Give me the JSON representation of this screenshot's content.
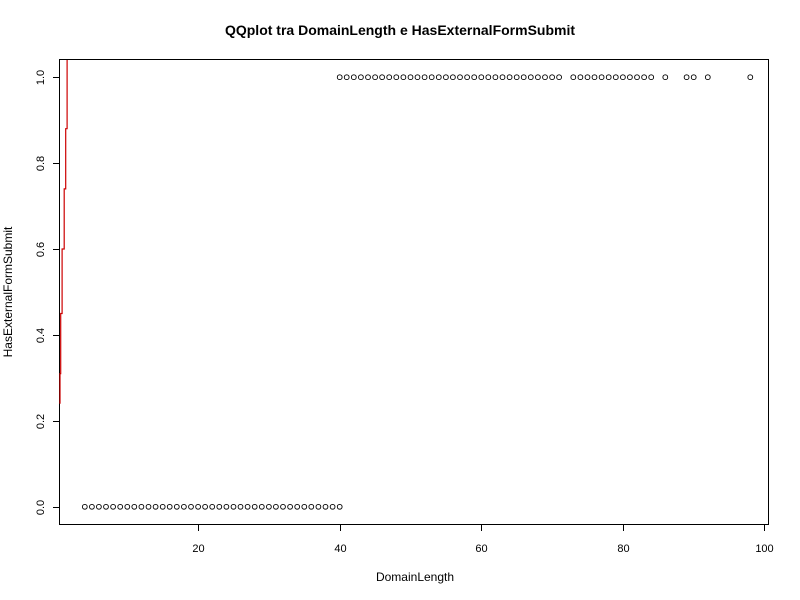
{
  "chart_data": {
    "type": "scatter",
    "title": "QQplot tra DomainLength e HasExternalFormSubmit",
    "xlabel": "DomainLength",
    "ylabel": "HasExternalFormSubmit",
    "xlim": [
      0.5,
      100.5
    ],
    "ylim": [
      -0.04,
      1.04
    ],
    "x_ticks": [
      20,
      40,
      60,
      80,
      100
    ],
    "y_ticks": [
      0.0,
      0.2,
      0.4,
      0.6,
      0.8,
      1.0
    ],
    "x_tick_labels": [
      "20",
      "40",
      "60",
      "80",
      "100"
    ],
    "y_tick_labels": [
      "0.0",
      "0.2",
      "0.4",
      "0.6",
      "0.8",
      "1.0"
    ],
    "grid": false,
    "series": [
      {
        "type": "points",
        "color": "#000000",
        "points": [
          [
            4,
            0
          ],
          [
            5,
            0
          ],
          [
            6,
            0
          ],
          [
            7,
            0
          ],
          [
            8,
            0
          ],
          [
            9,
            0
          ],
          [
            10,
            0
          ],
          [
            11,
            0
          ],
          [
            12,
            0
          ],
          [
            13,
            0
          ],
          [
            14,
            0
          ],
          [
            15,
            0
          ],
          [
            16,
            0
          ],
          [
            17,
            0
          ],
          [
            18,
            0
          ],
          [
            19,
            0
          ],
          [
            20,
            0
          ],
          [
            21,
            0
          ],
          [
            22,
            0
          ],
          [
            23,
            0
          ],
          [
            24,
            0
          ],
          [
            25,
            0
          ],
          [
            26,
            0
          ],
          [
            27,
            0
          ],
          [
            28,
            0
          ],
          [
            29,
            0
          ],
          [
            30,
            0
          ],
          [
            31,
            0
          ],
          [
            32,
            0
          ],
          [
            33,
            0
          ],
          [
            34,
            0
          ],
          [
            35,
            0
          ],
          [
            36,
            0
          ],
          [
            37,
            0
          ],
          [
            38,
            0
          ],
          [
            39,
            0
          ],
          [
            40,
            0
          ],
          [
            40,
            1
          ],
          [
            41,
            1
          ],
          [
            42,
            1
          ],
          [
            43,
            1
          ],
          [
            44,
            1
          ],
          [
            45,
            1
          ],
          [
            46,
            1
          ],
          [
            47,
            1
          ],
          [
            48,
            1
          ],
          [
            49,
            1
          ],
          [
            50,
            1
          ],
          [
            51,
            1
          ],
          [
            52,
            1
          ],
          [
            53,
            1
          ],
          [
            54,
            1
          ],
          [
            55,
            1
          ],
          [
            56,
            1
          ],
          [
            57,
            1
          ],
          [
            58,
            1
          ],
          [
            59,
            1
          ],
          [
            60,
            1
          ],
          [
            61,
            1
          ],
          [
            62,
            1
          ],
          [
            63,
            1
          ],
          [
            64,
            1
          ],
          [
            65,
            1
          ],
          [
            66,
            1
          ],
          [
            67,
            1
          ],
          [
            68,
            1
          ],
          [
            69,
            1
          ],
          [
            70,
            1
          ],
          [
            71,
            1
          ],
          [
            73,
            1
          ],
          [
            74,
            1
          ],
          [
            75,
            1
          ],
          [
            76,
            1
          ],
          [
            77,
            1
          ],
          [
            78,
            1
          ],
          [
            79,
            1
          ],
          [
            80,
            1
          ],
          [
            81,
            1
          ],
          [
            82,
            1
          ],
          [
            83,
            1
          ],
          [
            84,
            1
          ],
          [
            86,
            1
          ],
          [
            89,
            1
          ],
          [
            90,
            1
          ],
          [
            92,
            1
          ],
          [
            98,
            1
          ]
        ]
      },
      {
        "type": "line",
        "color": "#cc0000",
        "points": [
          [
            0.5,
            0.24
          ],
          [
            0.5,
            0.31
          ],
          [
            0.6,
            0.31
          ],
          [
            0.6,
            0.45
          ],
          [
            0.8,
            0.45
          ],
          [
            0.8,
            0.6
          ],
          [
            1.1,
            0.6
          ],
          [
            1.1,
            0.74
          ],
          [
            1.3,
            0.74
          ],
          [
            1.3,
            0.88
          ],
          [
            1.5,
            0.88
          ],
          [
            1.5,
            1.04
          ]
        ]
      }
    ]
  }
}
